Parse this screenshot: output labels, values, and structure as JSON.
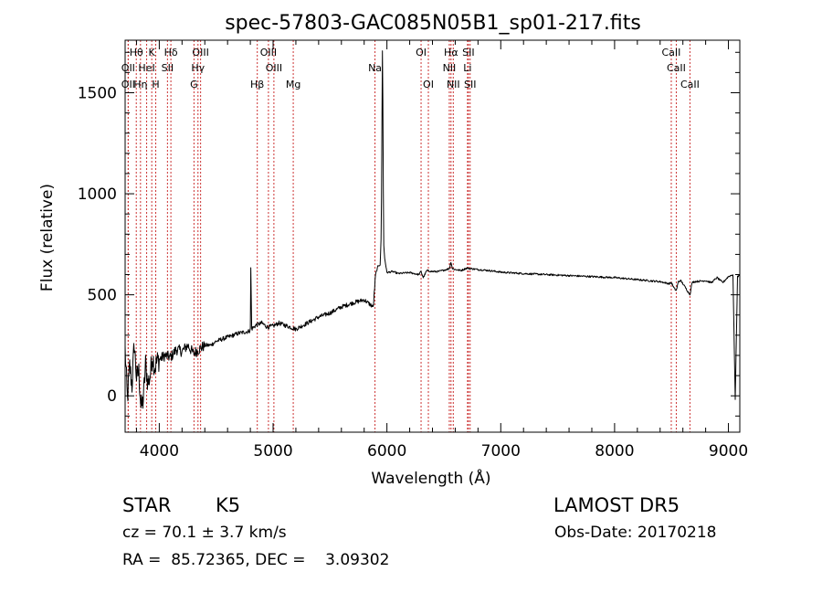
{
  "chart_data": {
    "type": "line",
    "title": "spec-57803-GAC085N05B1_sp01-217.fits",
    "xlabel": "Wavelength (Å)",
    "ylabel": "Flux (relative)",
    "xlim": [
      3700,
      9100
    ],
    "ylim": [
      -180,
      1760
    ],
    "x_ticks": [
      4000,
      5000,
      6000,
      7000,
      8000,
      9000
    ],
    "y_ticks": [
      0,
      500,
      1000,
      1500
    ],
    "x_tick_labels": [
      "4000",
      "5000",
      "6000",
      "7000",
      "8000",
      "9000"
    ],
    "y_tick_labels": [
      "0",
      "500",
      "1000",
      "1500"
    ],
    "grid": false,
    "series": [
      {
        "x": [
          3700,
          3720,
          3740,
          3760,
          3780,
          3800,
          3820,
          3840,
          3860,
          3880,
          3900,
          3920,
          3940,
          3960,
          3980,
          4000,
          4050,
          4100,
          4150,
          4200,
          4250,
          4300,
          4350,
          4400,
          4450,
          4500,
          4600,
          4700,
          4790,
          4800,
          4805,
          4810,
          4830,
          4850,
          4900,
          4950,
          5000,
          5050,
          5100,
          5150,
          5200,
          5300,
          5400,
          5500,
          5600,
          5700,
          5800,
          5880,
          5900,
          5920,
          5940,
          5950,
          5960,
          5965,
          5970,
          5980,
          6000,
          6050,
          6100,
          6200,
          6280,
          6300,
          6320,
          6350,
          6400,
          6450,
          6500,
          6550,
          6563,
          6575,
          6600,
          6650,
          6700,
          6800,
          6900,
          7000,
          7200,
          7400,
          7600,
          7800,
          8000,
          8200,
          8400,
          8480,
          8500,
          8520,
          8542,
          8560,
          8580,
          8600,
          8662,
          8680,
          8700,
          8800,
          8850,
          8900,
          8950,
          9000,
          9040,
          9060,
          9080,
          9100
        ],
        "y": [
          230,
          -20,
          150,
          50,
          260,
          90,
          120,
          -60,
          -20,
          160,
          60,
          100,
          200,
          140,
          170,
          180,
          200,
          190,
          230,
          220,
          250,
          210,
          230,
          250,
          250,
          270,
          290,
          310,
          320,
          330,
          710,
          330,
          340,
          350,
          360,
          340,
          345,
          360,
          350,
          340,
          330,
          360,
          390,
          410,
          440,
          460,
          475,
          440,
          600,
          640,
          650,
          800,
          1710,
          1400,
          760,
          680,
          610,
          615,
          605,
          610,
          600,
          615,
          585,
          620,
          615,
          615,
          622,
          630,
          665,
          630,
          625,
          620,
          632,
          625,
          620,
          612,
          605,
          600,
          595,
          590,
          585,
          575,
          565,
          555,
          560,
          535,
          520,
          565,
          570,
          555,
          500,
          560,
          565,
          570,
          560,
          585,
          560,
          590,
          600,
          -20,
          590,
          600
        ]
      }
    ],
    "line_markers": [
      {
        "label": "Hθ",
        "x": 3798,
        "row": 0
      },
      {
        "label": "OII",
        "x": 3727,
        "row": 1
      },
      {
        "label": "OII",
        "x": 3727,
        "row": 2
      },
      {
        "label": "Hη",
        "x": 3835,
        "row": 2
      },
      {
        "label": "HeI",
        "x": 3889,
        "row": 1
      },
      {
        "label": "K",
        "x": 3934,
        "row": 0
      },
      {
        "label": "H",
        "x": 3969,
        "row": 2
      },
      {
        "label": "Hδ",
        "x": 4102,
        "row": 0
      },
      {
        "label": "SII",
        "x": 4072,
        "row": 1
      },
      {
        "label": "OIII",
        "x": 4363,
        "row": 0
      },
      {
        "label": "Hγ",
        "x": 4340,
        "row": 1
      },
      {
        "label": "G",
        "x": 4305,
        "row": 2
      },
      {
        "label": "Hβ",
        "x": 4861,
        "row": 2
      },
      {
        "label": "OIII",
        "x": 4959,
        "row": 0
      },
      {
        "label": "OIII",
        "x": 5007,
        "row": 1
      },
      {
        "label": "Mg",
        "x": 5177,
        "row": 2
      },
      {
        "label": "Na",
        "x": 5895,
        "row": 1
      },
      {
        "label": "OI",
        "x": 6300,
        "row": 0
      },
      {
        "label": "OI",
        "x": 6364,
        "row": 2
      },
      {
        "label": "Hα",
        "x": 6563,
        "row": 0
      },
      {
        "label": "SII",
        "x": 6716,
        "row": 0
      },
      {
        "label": "NII",
        "x": 6548,
        "row": 1
      },
      {
        "label": "Li",
        "x": 6708,
        "row": 1
      },
      {
        "label": "NII",
        "x": 6583,
        "row": 2
      },
      {
        "label": "SII",
        "x": 6731,
        "row": 2
      },
      {
        "label": "CaII",
        "x": 8498,
        "row": 0
      },
      {
        "label": "CaII",
        "x": 8542,
        "row": 1
      },
      {
        "label": "CaII",
        "x": 8662,
        "row": 2
      }
    ],
    "marker_color": "#cc3333"
  },
  "info": {
    "object_class": "STAR",
    "subclass": "K5",
    "survey": "LAMOST DR5",
    "redshift": "cz = 70.1 ± 3.7 km/s",
    "obs_date": "Obs-Date: 20170218",
    "coords": "RA =  85.72365, DEC =    3.09302"
  }
}
